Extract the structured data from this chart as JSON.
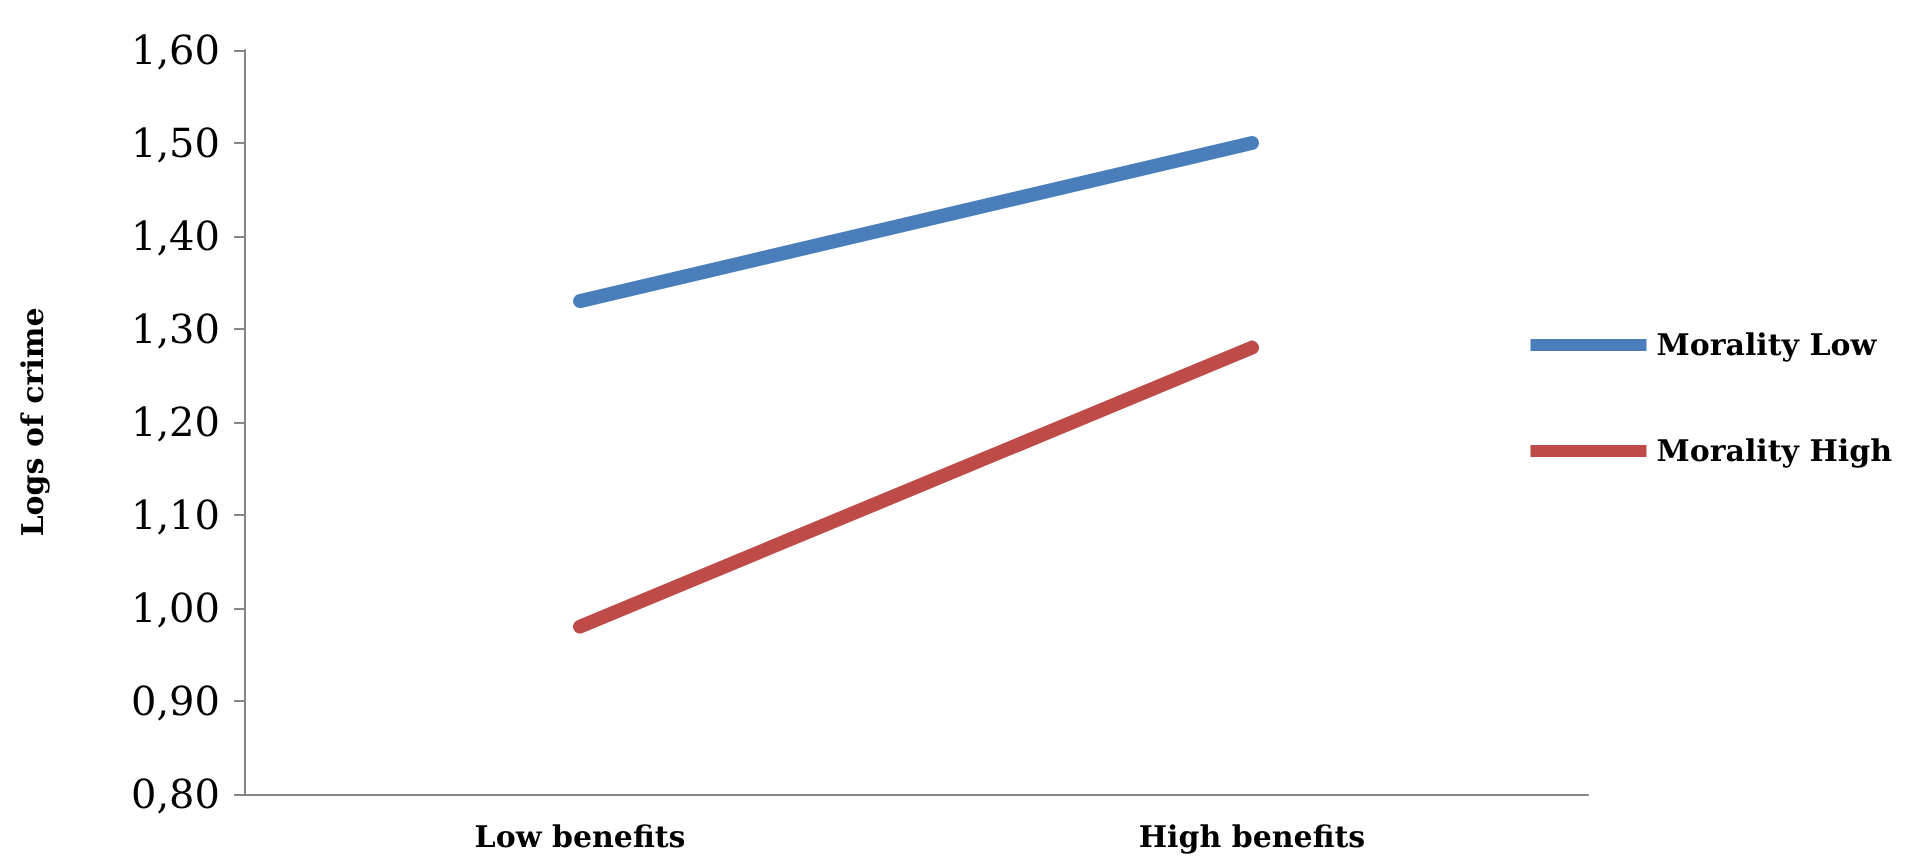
{
  "chart_data": {
    "type": "line",
    "ylabel": "Logs of crime",
    "categories": [
      "Low benefits",
      "High benefits"
    ],
    "series": [
      {
        "name": "Morality Low",
        "color": "#4a7ebb",
        "values": [
          1.33,
          1.5
        ]
      },
      {
        "name": "Morality High",
        "color": "#be4b48",
        "values": [
          0.98,
          1.28
        ]
      }
    ],
    "ylim": [
      0.8,
      1.6
    ],
    "yticks": [
      {
        "value": 0.8,
        "label": "0,80"
      },
      {
        "value": 0.9,
        "label": "0,90"
      },
      {
        "value": 1.0,
        "label": "1,00"
      },
      {
        "value": 1.1,
        "label": "1,10"
      },
      {
        "value": 1.2,
        "label": "1,20"
      },
      {
        "value": 1.3,
        "label": "1,30"
      },
      {
        "value": 1.4,
        "label": "1,40"
      },
      {
        "value": 1.5,
        "label": "1,50"
      },
      {
        "value": 1.6,
        "label": "1,60"
      }
    ],
    "grid": false,
    "legend": "right",
    "line_style": "solid"
  }
}
